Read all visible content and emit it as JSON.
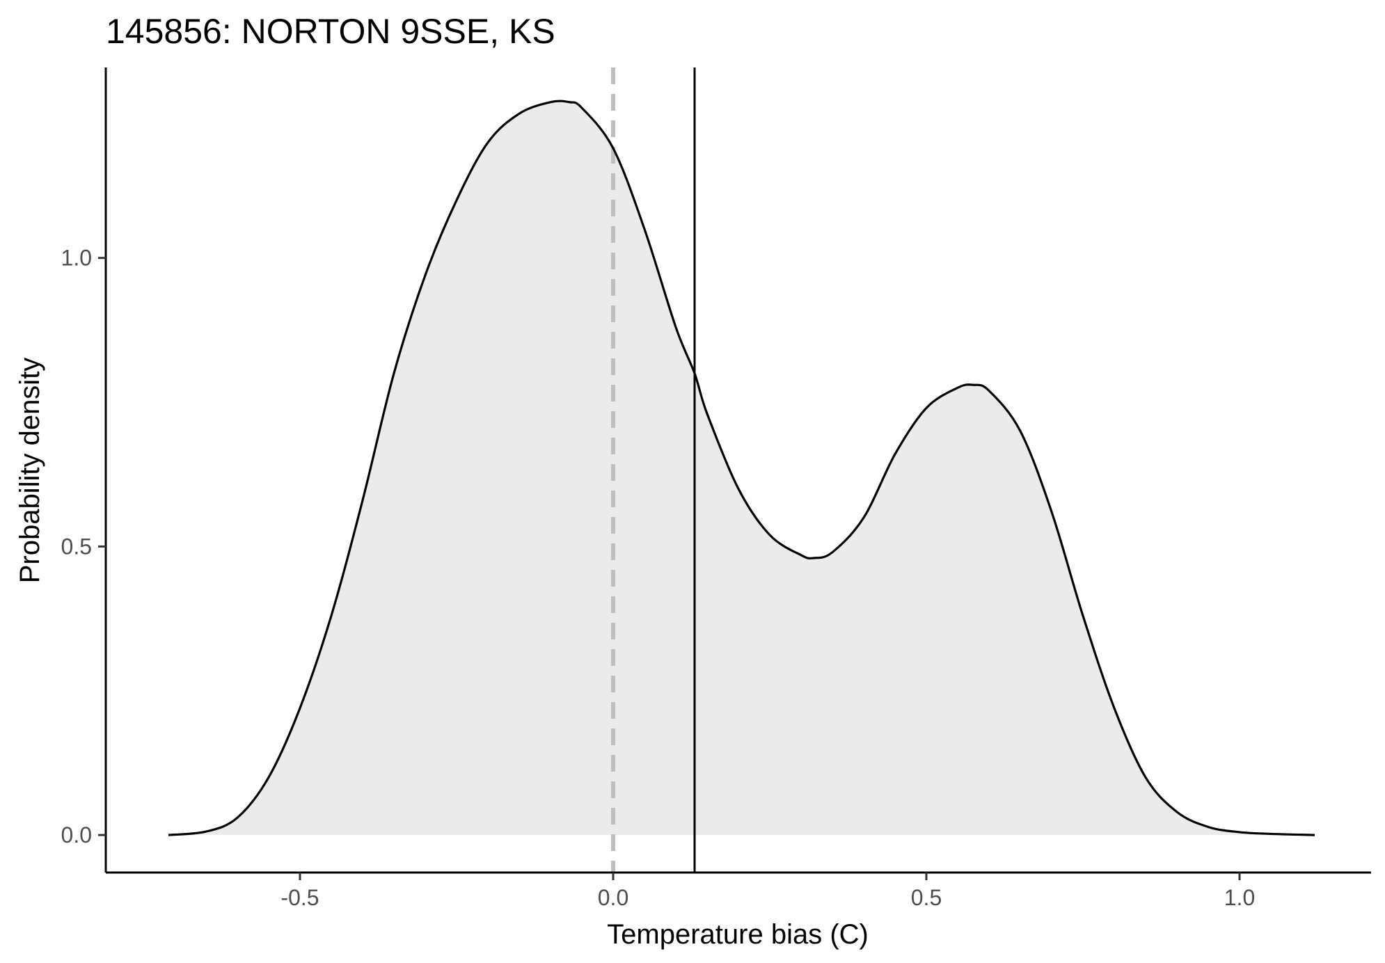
{
  "chart_data": {
    "type": "area",
    "title": "145856: NORTON 9SSE, KS",
    "xlabel": "Temperature bias (C)",
    "ylabel": "Probability density",
    "xlim": [
      -0.81,
      1.21
    ],
    "ylim": [
      -0.065,
      1.33
    ],
    "x_ticks": [
      -0.5,
      0.0,
      0.5,
      1.0
    ],
    "x_tick_labels": [
      "-0.5",
      "0.0",
      "0.5",
      "1.0"
    ],
    "y_ticks": [
      0.0,
      0.5,
      1.0
    ],
    "y_tick_labels": [
      "0.0",
      "0.5",
      "1.0"
    ],
    "grid": false,
    "legend": "none",
    "colors": {
      "fill": "#ebebeb",
      "line": "#000000",
      "zero_line": "#bebebe"
    },
    "density": {
      "x": [
        -0.71,
        -0.65,
        -0.6,
        -0.55,
        -0.5,
        -0.45,
        -0.4,
        -0.35,
        -0.3,
        -0.25,
        -0.2,
        -0.15,
        -0.1,
        -0.07,
        -0.05,
        0.0,
        0.05,
        0.1,
        0.13,
        0.15,
        0.2,
        0.25,
        0.3,
        0.32,
        0.35,
        0.4,
        0.45,
        0.5,
        0.55,
        0.575,
        0.6,
        0.65,
        0.7,
        0.75,
        0.8,
        0.85,
        0.9,
        0.95,
        1.0,
        1.05,
        1.12
      ],
      "y": [
        0.0,
        0.006,
        0.03,
        0.1,
        0.22,
        0.38,
        0.58,
        0.8,
        0.97,
        1.1,
        1.2,
        1.25,
        1.27,
        1.27,
        1.26,
        1.19,
        1.05,
        0.88,
        0.8,
        0.73,
        0.6,
        0.52,
        0.485,
        0.48,
        0.49,
        0.55,
        0.66,
        0.74,
        0.775,
        0.78,
        0.77,
        0.7,
        0.56,
        0.38,
        0.22,
        0.1,
        0.04,
        0.014,
        0.005,
        0.002,
        0.0
      ]
    },
    "vlines": [
      {
        "x": 0.0,
        "style": "dashed",
        "color": "#bebebe"
      },
      {
        "x": 0.13,
        "style": "solid",
        "color": "#000000"
      }
    ]
  }
}
